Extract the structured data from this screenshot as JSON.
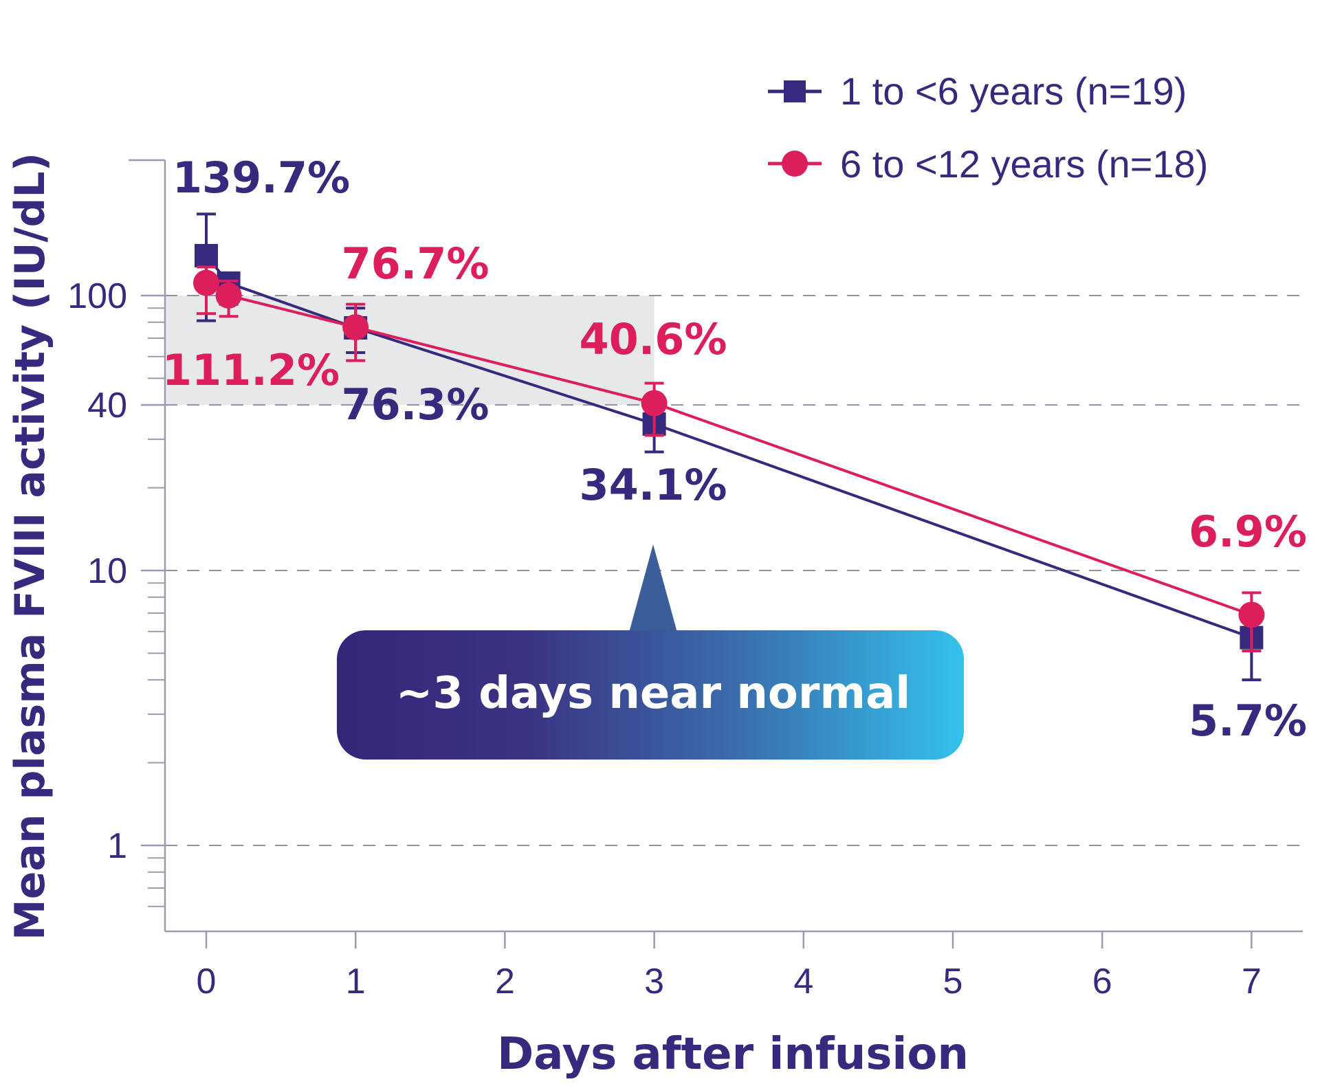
{
  "chart_data": {
    "type": "line",
    "xlabel": "Days after infusion",
    "ylabel": "Mean plasma FVIII activity (IU/dL)",
    "y_scale": "log",
    "xlim": [
      -0.3,
      7.3
    ],
    "ylim": [
      0.6,
      250
    ],
    "x_ticks": [
      0,
      1,
      2,
      3,
      4,
      5,
      6,
      7
    ],
    "y_ticks": [
      1,
      10,
      40,
      100
    ],
    "grid": "dashed horizontal lines at 1, 10, 40 and 100",
    "shaded_band": [
      40,
      100
    ],
    "legend_position": "top-right",
    "series": [
      {
        "name": "1 to <6 years (n=19)",
        "color": "#352a7d",
        "marker": "square",
        "points": [
          {
            "x": 0,
            "y": 139.7,
            "err_low": 81,
            "err_high": 198
          },
          {
            "x": 0.15,
            "y": 111,
            "err_low": 93,
            "err_high": 120
          },
          {
            "x": 1,
            "y": 76.3,
            "err_low": 62,
            "err_high": 90
          },
          {
            "x": 3,
            "y": 34.1,
            "err_low": 27,
            "err_high": 37
          },
          {
            "x": 7,
            "y": 5.7,
            "err_low": 4.0,
            "err_high": 7.0
          }
        ]
      },
      {
        "name": "6 to <12 years (n=18)",
        "color": "#dc1f5a",
        "marker": "circle",
        "points": [
          {
            "x": 0,
            "y": 111.2,
            "err_low": 86,
            "err_high": 127
          },
          {
            "x": 0.15,
            "y": 100,
            "err_low": 84,
            "err_high": 113
          },
          {
            "x": 1,
            "y": 76.7,
            "err_low": 58,
            "err_high": 93
          },
          {
            "x": 3,
            "y": 40.6,
            "err_low": 31,
            "err_high": 48
          },
          {
            "x": 7,
            "y": 6.9,
            "err_low": 5.1,
            "err_high": 8.3
          }
        ]
      }
    ],
    "data_labels": [
      {
        "text": "139.7%",
        "series": 0
      },
      {
        "text": "111.2%",
        "series": 1
      },
      {
        "text": "76.7%",
        "series": 1
      },
      {
        "text": "76.3%",
        "series": 0
      },
      {
        "text": "40.6%",
        "series": 1
      },
      {
        "text": "34.1%",
        "series": 0
      },
      {
        "text": "6.9%",
        "series": 1
      },
      {
        "text": "5.7%",
        "series": 0
      }
    ],
    "callout": "~3 days near normal"
  }
}
